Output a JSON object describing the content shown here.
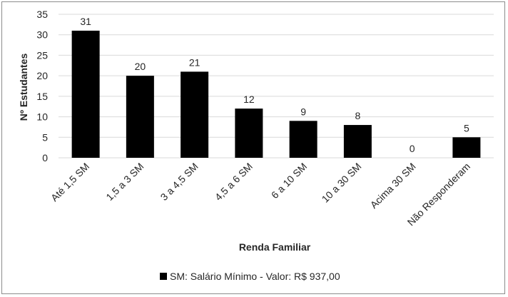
{
  "chart_data": {
    "type": "bar",
    "categories": [
      "Até 1,5 SM",
      "1,5 a 3 SM",
      "3 a 4,5 SM",
      "4,5 a 6 SM",
      "6 a 10 SM",
      "10 a 30 SM",
      "Acima 30 SM",
      "Não Responderam"
    ],
    "values": [
      31,
      20,
      21,
      12,
      9,
      8,
      0,
      5
    ],
    "data_labels": [
      "31",
      "20",
      "21",
      "12",
      "9",
      "8",
      "0",
      "5"
    ],
    "title": "",
    "xlabel": "Renda Familiar",
    "ylabel": "Nº Estudantes",
    "ylim": [
      0,
      35
    ],
    "yticks": [
      0,
      5,
      10,
      15,
      20,
      25,
      30,
      35
    ],
    "ytick_labels": [
      "0",
      "5",
      "10",
      "15",
      "20",
      "25",
      "30",
      "35"
    ],
    "grid": true,
    "legend_position": "bottom",
    "legend_text": "SM: Salário Mínimo - Valor: R$ 937,00",
    "bar_color": "#000000",
    "grid_color": "#d9d9d9"
  }
}
